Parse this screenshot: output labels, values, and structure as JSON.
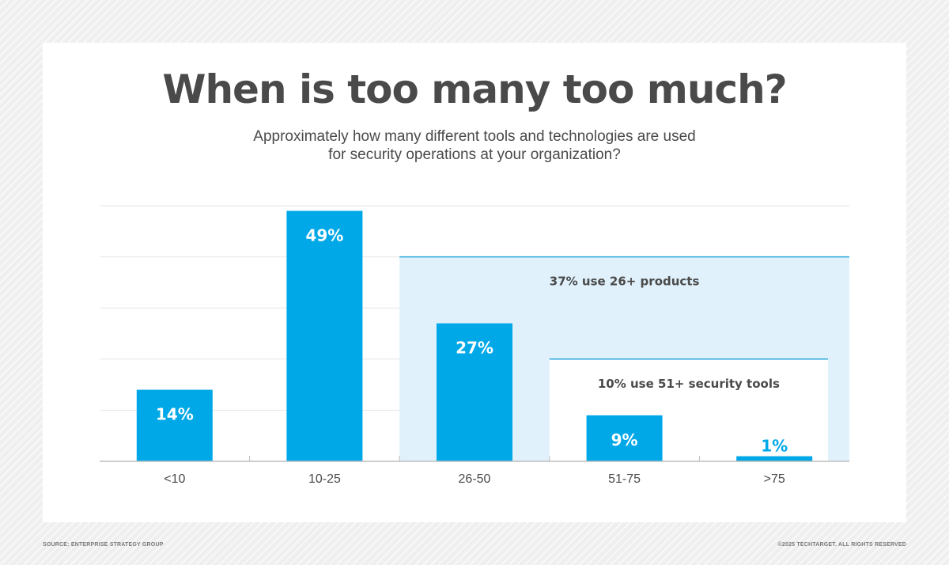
{
  "chart_data": {
    "type": "bar",
    "title": "When is too many too much?",
    "subtitle_lines": [
      "Approximately how many different tools and technologies are used",
      "for security operations at your organization?"
    ],
    "categories": [
      "<10",
      "10-25",
      "26-50",
      "51-75",
      ">75"
    ],
    "values": [
      14,
      49,
      27,
      9,
      1
    ],
    "value_labels": [
      "14%",
      "49%",
      "27%",
      "9%",
      "1%"
    ],
    "ylim": [
      0,
      50
    ],
    "grid": true,
    "xlabel": "",
    "ylabel": "",
    "annotations": [
      {
        "text": "37% use 26+ products",
        "from_category": "26-50",
        "level": 40
      },
      {
        "text": "10% use 51+ security tools",
        "from_category": "51-75",
        "level": 20
      }
    ]
  },
  "colors": {
    "bar": "#00a8e8",
    "band_37": "#e0f1fb",
    "band_10": "#ffffff",
    "band_line": "#2aa8dc",
    "title": "#4a4a4a",
    "grid": "#e6e6e6",
    "axis": "#bdbdbd"
  },
  "footer": {
    "source": "SOURCE: ENTERPRISE STRATEGY GROUP",
    "copyright": "©2025 TECHTARGET. ALL RIGHTS RESERVED"
  }
}
